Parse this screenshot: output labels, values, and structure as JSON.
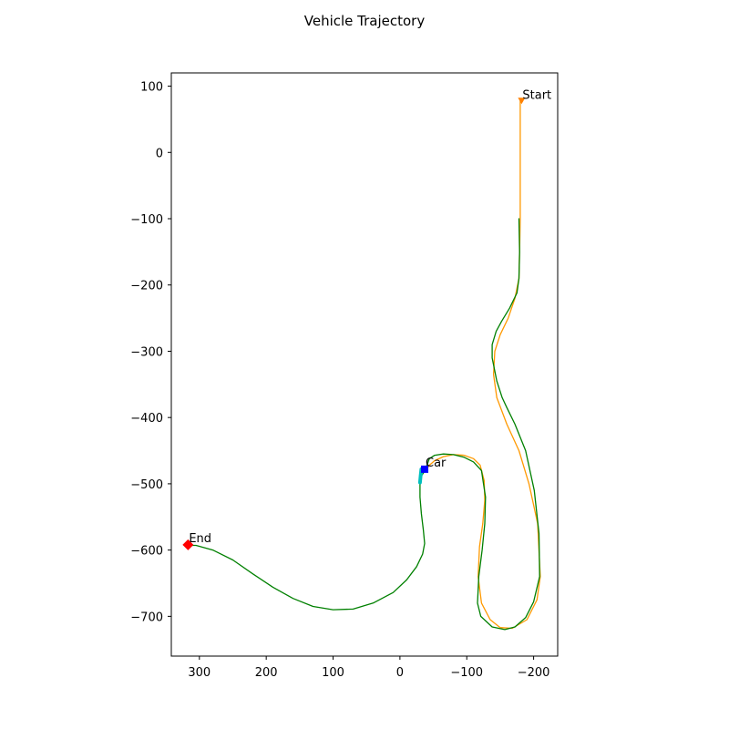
{
  "chart_data": {
    "type": "line",
    "title": "Vehicle Trajectory",
    "xlabel": "",
    "ylabel": "",
    "xlim": [
      342,
      -236
    ],
    "ylim": [
      -760,
      120
    ],
    "x_inverted": true,
    "grid": false,
    "xticks": [
      300,
      200,
      100,
      0,
      -100,
      -200
    ],
    "xtick_labels": [
      "300",
      "200",
      "100",
      "0",
      "−100",
      "−200"
    ],
    "yticks": [
      100,
      0,
      -100,
      -200,
      -300,
      -400,
      -500,
      -600,
      -700
    ],
    "ytick_labels": [
      "100",
      "0",
      "−100",
      "−200",
      "−300",
      "−400",
      "−500",
      "−600",
      "−700"
    ],
    "series": [
      {
        "color": "#ff9900",
        "x": [
          -180,
          -180,
          -180,
          -179,
          -178,
          -172,
          -162,
          -150,
          -142,
          -140,
          -145,
          -160,
          -178,
          -193,
          -206,
          -210,
          -205,
          -190,
          -168,
          -150,
          -135,
          -122,
          -117,
          -119,
          -124,
          -127,
          -126,
          -120,
          -110,
          -96,
          -80,
          -65,
          -52,
          -44,
          -40,
          -37
        ],
        "y": [
          78,
          0,
          -100,
          -150,
          -190,
          -220,
          -250,
          -275,
          -300,
          -335,
          -370,
          -410,
          -450,
          -500,
          -560,
          -640,
          -675,
          -705,
          -718,
          -717,
          -705,
          -680,
          -640,
          -595,
          -560,
          -525,
          -495,
          -472,
          -462,
          -457,
          -456,
          -459,
          -465,
          -472,
          -478,
          -480
        ]
      },
      {
        "color": "#008000",
        "x": [
          -37,
          -44,
          -52,
          -65,
          -80,
          -96,
          -110,
          -122,
          -128,
          -127,
          -123,
          -118,
          -116,
          -121,
          -138,
          -157,
          -172,
          -188,
          -200,
          -209,
          -208,
          -201,
          -188,
          -172,
          -160,
          -153,
          -145,
          -138,
          -138,
          -144,
          -152,
          -164,
          -175,
          -178,
          -179,
          -178
        ],
        "y": [
          -481,
          -462,
          -457,
          -455,
          -456,
          -460,
          -467,
          -480,
          -520,
          -560,
          -600,
          -640,
          -680,
          -700,
          -716,
          -720,
          -716,
          -702,
          -678,
          -640,
          -575,
          -510,
          -450,
          -410,
          -385,
          -370,
          -345,
          -310,
          -290,
          -270,
          -255,
          -235,
          -212,
          -190,
          -150,
          -100
        ]
      },
      {
        "color": "#008000",
        "x": [
          -37,
          -32,
          -30,
          -30,
          -32,
          -35,
          -37,
          -34,
          -25,
          -10,
          10,
          40,
          70,
          100,
          130,
          160,
          190,
          220,
          250,
          280,
          305,
          318
        ],
        "y": [
          -481,
          -488,
          -500,
          -520,
          -545,
          -570,
          -590,
          -606,
          -625,
          -645,
          -664,
          -680,
          -689,
          -690,
          -685,
          -673,
          -656,
          -636,
          -615,
          -600,
          -593,
          -593
        ]
      },
      {
        "color": "#00bfbf",
        "x": [
          -32,
          -31,
          -30
        ],
        "y": [
          -478,
          -488,
          -498
        ]
      }
    ],
    "markers": [
      {
        "label": "Start",
        "x": -182,
        "y": 77,
        "shape": "triangle-down",
        "color": "#ff8000"
      },
      {
        "label": "Car",
        "x": -37,
        "y": -478,
        "shape": "square",
        "color": "#0000ff"
      },
      {
        "label": "End",
        "x": 317,
        "y": -592,
        "shape": "diamond",
        "color": "#ff0000"
      }
    ]
  }
}
